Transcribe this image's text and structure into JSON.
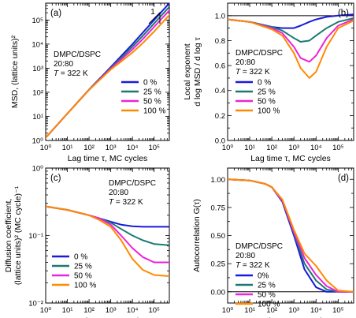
{
  "figure": {
    "colors": {
      "0 %": "#1a1adc",
      "25 %": "#1a7a72",
      "50 %": "#ee22d8",
      "100 %": "#ff8a00"
    }
  },
  "chart_data": [
    {
      "panel": "(a)",
      "type": "line",
      "xscale": "log",
      "yscale": "log",
      "xlim": [
        1,
        500000
      ],
      "ylim": [
        1,
        500000
      ],
      "xlabel": "Lag time τ, MC cycles",
      "ylabel": "MSD, (lattice units)²",
      "annotation": [
        "DMPC/DSPC",
        "20:80",
        "T = 322 K"
      ],
      "slope_label": "1",
      "legend": "center-right",
      "xticks": [
        "10⁰",
        "10¹",
        "10²",
        "10³",
        "10⁴",
        "10⁵"
      ],
      "yticks": [
        "10⁰",
        "10¹",
        "10²",
        "10³",
        "10⁴",
        "10⁵"
      ],
      "x": [
        1,
        10,
        100,
        1000,
        3000,
        10000,
        30000,
        100000,
        500000
      ],
      "series": [
        {
          "name": "0 %",
          "values": [
            1.3,
            13,
            130,
            1100,
            3200,
            10000,
            30000,
            100000,
            500000
          ]
        },
        {
          "name": "25 %",
          "values": [
            1.3,
            13,
            128,
            1000,
            2700,
            7800,
            22000,
            72000,
            350000
          ]
        },
        {
          "name": "50 %",
          "values": [
            1.3,
            13,
            127,
            950,
            2300,
            6000,
            16000,
            52000,
            250000
          ]
        },
        {
          "name": "100 %",
          "values": [
            1.3,
            13,
            126,
            880,
            1900,
            4500,
            11000,
            33000,
            160000
          ]
        }
      ]
    },
    {
      "panel": "(b)",
      "type": "line",
      "xscale": "log",
      "yscale": "linear",
      "xlim": [
        1,
        500000
      ],
      "ylim": [
        0,
        1.1
      ],
      "xlabel": "Lag time τ, MC cycles",
      "ylabel": "Local exponent d log MSD / d log τ",
      "annotation": [
        "DMPC/DSPC",
        "20:80",
        "T = 322 K"
      ],
      "legend": "center-right",
      "xticks": [
        "10⁰",
        "10¹",
        "10²",
        "10³",
        "10⁴",
        "10⁵"
      ],
      "yticks": [
        "0.0",
        "0.2",
        "0.4",
        "0.6",
        "0.8",
        "1.0"
      ],
      "x": [
        1,
        10,
        100,
        300,
        1000,
        2000,
        5000,
        10000,
        30000,
        100000,
        500000
      ],
      "series": [
        {
          "name": "0 %",
          "values": [
            0.97,
            0.95,
            0.91,
            0.9,
            0.9,
            0.92,
            0.95,
            0.97,
            0.99,
            1.0,
            1.01
          ]
        },
        {
          "name": "25 %",
          "values": [
            0.97,
            0.95,
            0.91,
            0.88,
            0.82,
            0.79,
            0.8,
            0.84,
            0.9,
            0.95,
            0.98
          ]
        },
        {
          "name": "50 %",
          "values": [
            0.97,
            0.95,
            0.9,
            0.86,
            0.75,
            0.66,
            0.63,
            0.68,
            0.82,
            0.92,
            0.97
          ]
        },
        {
          "name": "100 %",
          "values": [
            0.97,
            0.95,
            0.89,
            0.84,
            0.7,
            0.58,
            0.5,
            0.55,
            0.75,
            0.9,
            0.96
          ]
        }
      ]
    },
    {
      "panel": "(c)",
      "type": "line",
      "xscale": "log",
      "yscale": "log",
      "xlim": [
        1,
        500000
      ],
      "ylim": [
        0.01,
        1
      ],
      "xlabel": "Lag time τ, MC cycles",
      "ylabel": "Diffusion coefficient, (lattice units)² (MC cycle)⁻¹",
      "annotation": [
        "DMPC/DSPC",
        "20:80",
        "T = 322 K"
      ],
      "legend": "center-left",
      "xticks": [
        "10⁰",
        "10¹",
        "10²",
        "10³",
        "10⁴",
        "10⁵"
      ],
      "yticks": [
        "10⁻²",
        "10⁻¹",
        "10⁰"
      ],
      "x": [
        1,
        10,
        100,
        300,
        1000,
        3000,
        10000,
        30000,
        100000,
        500000
      ],
      "series": [
        {
          "name": "0 %",
          "values": [
            0.27,
            0.24,
            0.2,
            0.18,
            0.16,
            0.145,
            0.137,
            0.135,
            0.135,
            0.135
          ]
        },
        {
          "name": "25 %",
          "values": [
            0.27,
            0.24,
            0.2,
            0.18,
            0.155,
            0.125,
            0.1,
            0.085,
            0.075,
            0.072
          ]
        },
        {
          "name": "50 %",
          "values": [
            0.27,
            0.24,
            0.2,
            0.18,
            0.145,
            0.1,
            0.065,
            0.048,
            0.04,
            0.04
          ]
        },
        {
          "name": "100 %",
          "values": [
            0.27,
            0.24,
            0.2,
            0.17,
            0.135,
            0.085,
            0.045,
            0.031,
            0.026,
            0.025
          ]
        }
      ]
    },
    {
      "panel": "(d)",
      "type": "line",
      "xscale": "log",
      "yscale": "linear",
      "xlim": [
        1,
        500000
      ],
      "ylim": [
        -0.1,
        1.1
      ],
      "xlabel": "Lag time τ, MC cycles",
      "ylabel": "Autocorrelation G(τ)",
      "annotation": [
        "DMPC/DSPC",
        "20:80",
        "T = 322 K"
      ],
      "legend": "bottom-left",
      "xticks": [
        "10⁰",
        "10¹",
        "10²",
        "10³",
        "10⁴",
        "10⁵"
      ],
      "yticks": [
        "0.00",
        "0.25",
        "0.50",
        "0.75",
        "1.00"
      ],
      "x": [
        1,
        10,
        50,
        100,
        300,
        1000,
        3000,
        10000,
        30000,
        100000,
        500000
      ],
      "series": [
        {
          "name": "0%",
          "values": [
            1.0,
            0.99,
            0.96,
            0.93,
            0.8,
            0.5,
            0.2,
            0.04,
            0.0,
            0.0,
            0.0
          ]
        },
        {
          "name": "25 %",
          "values": [
            1.0,
            0.99,
            0.96,
            0.93,
            0.81,
            0.52,
            0.25,
            0.1,
            0.02,
            0.0,
            0.0
          ]
        },
        {
          "name": "50 %",
          "values": [
            1.0,
            0.99,
            0.96,
            0.93,
            0.81,
            0.53,
            0.3,
            0.15,
            0.05,
            0.0,
            0.0
          ]
        },
        {
          "name": "100 %",
          "values": [
            1.0,
            0.99,
            0.96,
            0.93,
            0.82,
            0.55,
            0.34,
            0.23,
            0.1,
            0.01,
            0.0
          ]
        }
      ]
    }
  ]
}
